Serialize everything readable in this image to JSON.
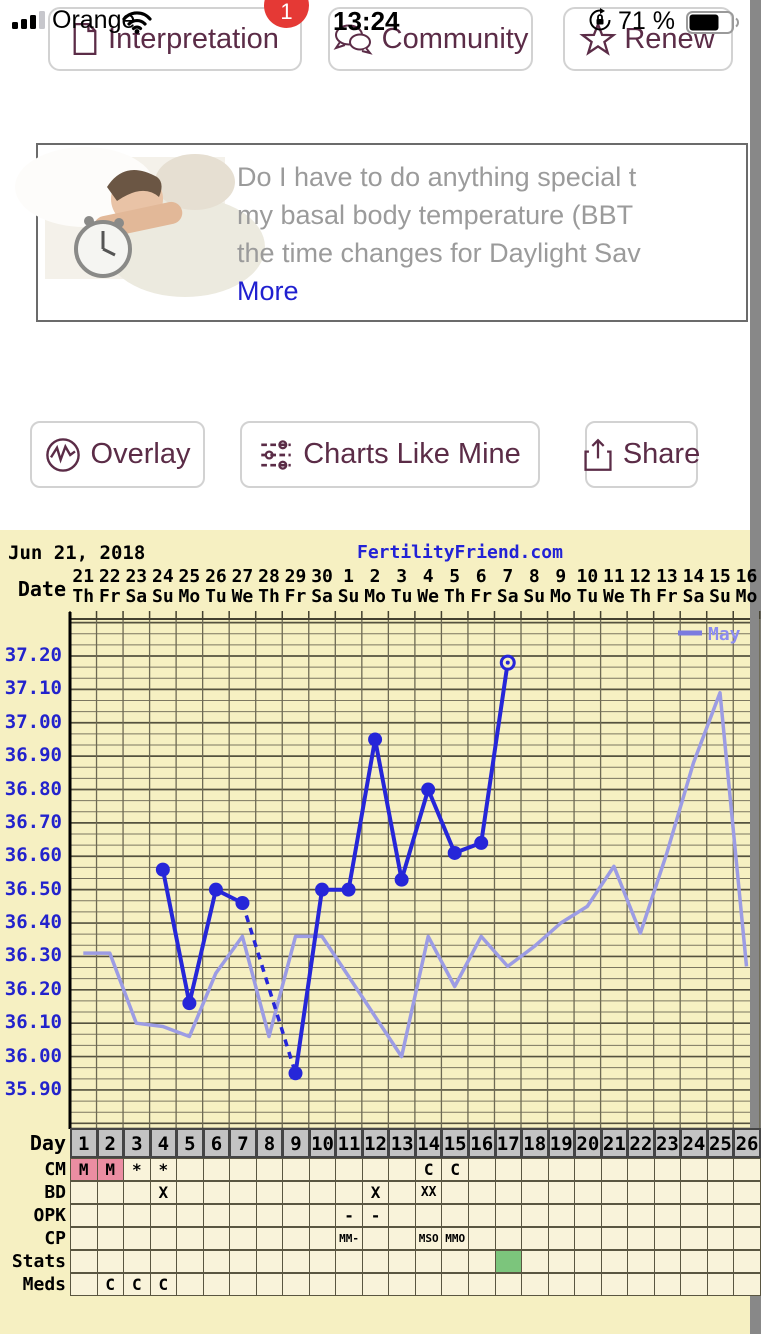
{
  "status_bar": {
    "carrier": "Orange",
    "time": "13:24",
    "battery_percent": "71 %"
  },
  "nav": {
    "buttons": [
      {
        "label": "Interpretation",
        "badge": "1"
      },
      {
        "label": "Community"
      },
      {
        "label": "Renew"
      }
    ]
  },
  "question_card": {
    "lines": [
      "Do I have to do anything special t",
      "my basal body temperature (BBT",
      "the time changes for Daylight Sav"
    ],
    "more_label": "More"
  },
  "actions": [
    {
      "label": "Overlay"
    },
    {
      "label": "Charts Like Mine"
    },
    {
      "label": "Share"
    }
  ],
  "chart_data": {
    "type": "line",
    "title": "FertilityFriend.com",
    "date_label": "Jun 21, 2018",
    "date_header_label": "Date",
    "day_header_label": "Day",
    "ylim": [
      35.78,
      37.31
    ],
    "ytick_labels": [
      "37.20",
      "37.10",
      "37.00",
      "36.90",
      "36.80",
      "36.70",
      "36.60",
      "36.50",
      "36.40",
      "36.30",
      "36.20",
      "36.10",
      "36.00",
      "35.90"
    ],
    "days": [
      1,
      2,
      3,
      4,
      5,
      6,
      7,
      8,
      9,
      10,
      11,
      12,
      13,
      14,
      15,
      16,
      17,
      18,
      19,
      20,
      21,
      22,
      23,
      24,
      25,
      26
    ],
    "dates": [
      "21",
      "22",
      "23",
      "24",
      "25",
      "26",
      "27",
      "28",
      "29",
      "30",
      "1",
      "2",
      "3",
      "4",
      "5",
      "6",
      "7",
      "8",
      "9",
      "10",
      "11",
      "12",
      "13",
      "14",
      "15",
      "16"
    ],
    "weekdays": [
      "Th",
      "Fr",
      "Sa",
      "Su",
      "Mo",
      "Tu",
      "We",
      "Th",
      "Fr",
      "Sa",
      "Su",
      "Mo",
      "Tu",
      "We",
      "Th",
      "Fr",
      "Sa",
      "Su",
      "Mo",
      "Tu",
      "We",
      "Th",
      "Fr",
      "Sa",
      "Su",
      "Mo"
    ],
    "legend": {
      "label": "May",
      "position": "top-right",
      "color": "#8c8cf0"
    },
    "series": [
      {
        "name": "current-cycle-bbt",
        "color": "#2626d8",
        "points": [
          {
            "day": 4,
            "temp": 36.56
          },
          {
            "day": 5,
            "temp": 36.16
          },
          {
            "day": 6,
            "temp": 36.5
          },
          {
            "day": 7,
            "temp": 36.46
          },
          {
            "day": 9,
            "temp": 35.95
          },
          {
            "day": 10,
            "temp": 36.5
          },
          {
            "day": 11,
            "temp": 36.5
          },
          {
            "day": 12,
            "temp": 36.95
          },
          {
            "day": 13,
            "temp": 36.53
          },
          {
            "day": 14,
            "temp": 36.8
          },
          {
            "day": 15,
            "temp": 36.61
          },
          {
            "day": 16,
            "temp": 36.64
          },
          {
            "day": 17,
            "temp": 37.18
          }
        ],
        "dashed_gap_between_days": [
          7,
          9
        ],
        "open_point_day": 17
      },
      {
        "name": "May-overlay-bbt",
        "color": "#9c9ce4",
        "points": [
          {
            "day": 1,
            "temp": 36.31
          },
          {
            "day": 2,
            "temp": 36.31
          },
          {
            "day": 3,
            "temp": 36.1
          },
          {
            "day": 4,
            "temp": 36.09
          },
          {
            "day": 5,
            "temp": 36.06
          },
          {
            "day": 6,
            "temp": 36.25
          },
          {
            "day": 7,
            "temp": 36.36
          },
          {
            "day": 8,
            "temp": 36.06
          },
          {
            "day": 9,
            "temp": 36.36
          },
          {
            "day": 10,
            "temp": 36.36
          },
          {
            "day": 11,
            "temp": 36.24
          },
          {
            "day": 12,
            "temp": 36.12
          },
          {
            "day": 13,
            "temp": 36.0
          },
          {
            "day": 14,
            "temp": 36.36
          },
          {
            "day": 15,
            "temp": 36.21
          },
          {
            "day": 16,
            "temp": 36.36
          },
          {
            "day": 17,
            "temp": 36.27
          },
          {
            "day": 18,
            "temp": 36.33
          },
          {
            "day": 19,
            "temp": 36.4
          },
          {
            "day": 20,
            "temp": 36.45
          },
          {
            "day": 21,
            "temp": 36.57
          },
          {
            "day": 22,
            "temp": 36.37
          },
          {
            "day": 23,
            "temp": 36.61
          },
          {
            "day": 24,
            "temp": 36.88
          },
          {
            "day": 25,
            "temp": 37.09
          },
          {
            "day": 26,
            "temp": 36.27
          }
        ]
      }
    ],
    "table": {
      "rows": [
        {
          "label": "CM",
          "cells": {
            "1": {
              "text": "M",
              "bg": "#eb8da2"
            },
            "2": {
              "text": "M",
              "bg": "#eb8da2"
            },
            "3": {
              "text": "*"
            },
            "4": {
              "text": "*"
            },
            "14": {
              "text": "C"
            },
            "15": {
              "text": "C"
            }
          }
        },
        {
          "label": "BD",
          "cells": {
            "4": {
              "text": "X"
            },
            "12": {
              "text": "X"
            },
            "14": {
              "text": "XX"
            }
          }
        },
        {
          "label": "OPK",
          "cells": {
            "11": {
              "text": "-"
            },
            "12": {
              "text": "-"
            }
          }
        },
        {
          "label": "CP",
          "cells": {
            "11": {
              "text": "MM-"
            },
            "14": {
              "text": "MSO"
            },
            "15": {
              "text": "MMO"
            }
          }
        },
        {
          "label": "Stats",
          "cells": {
            "17": {
              "text": "",
              "bg": "#7cc57c"
            }
          }
        },
        {
          "label": "Meds",
          "cells": {
            "2": {
              "text": "C"
            },
            "3": {
              "text": "C"
            },
            "4": {
              "text": "C"
            }
          }
        }
      ]
    },
    "colors": {
      "plot_bg": "#f6f0c2",
      "grid_minor": "#7b7660",
      "grid_major": "#55523f",
      "axis_label_blue": "#2323cc",
      "day_header_bg": "#c3c3c3",
      "cm_highlight_pink": "#eb8da2",
      "stats_green": "#7cc57c"
    }
  }
}
